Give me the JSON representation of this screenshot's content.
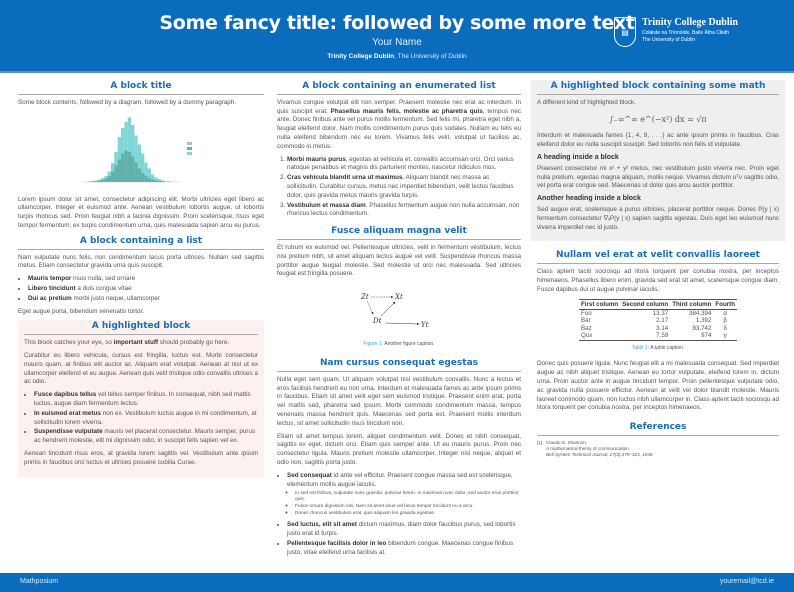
{
  "header": {
    "title": "Some fancy title: followed by some more text",
    "author": "Your Name",
    "institution_bold": "Trinity College Dublin",
    "institution_rest": ", The University of Dublin",
    "logo": {
      "name": "Trinity College Dublin",
      "irish": "Coláiste na Tríonóide, Baile Átha Cliath",
      "sub": "The University of Dublin"
    }
  },
  "col1": {
    "block1": {
      "title": "A block title",
      "intro": "Some block contents, followed by a diagram, followed by a dummy paragraph.",
      "histogram": {
        "series": [
          {
            "color": "#7fd6d6",
            "values": [
              0,
              0,
              1,
              1,
              2,
              3,
              5,
              8,
              14,
              25,
              40,
              60,
              72,
              80,
              86,
              76,
              62,
              50,
              38,
              26,
              18,
              10,
              6,
              4,
              2,
              1,
              1,
              0,
              0,
              0
            ]
          },
          {
            "color": "#63b1ad",
            "values": [
              0,
              0,
              0,
              1,
              1,
              2,
              3,
              5,
              8,
              14,
              22,
              30,
              38,
              42,
              40,
              34,
              26,
              18,
              12,
              8,
              5,
              3,
              2,
              1,
              1,
              0,
              0,
              0,
              0,
              0
            ]
          }
        ]
      },
      "para": "Lorem ipsum dolor sit amet, consectetur adipiscing elit. Morbi ultricies eget libero ac ullamcorper. Integer et euismod ante. Aenean vestibulum lobortis augue, ut lobortis turpis rhoncus sed. Proin feugiat nibh a lacinia dignissim. Proin scelerisque, risus eget tempor fermentum, ex turpis condimentum urna, quis malesuada sapien arcu eu purus."
    },
    "block2": {
      "title": "A block containing a list",
      "intro": "Nam vulputate nunc felis, non condimentum lacus porta ultrices. Nullam sed sagittis metus. Etiam consectetur gravida urna quis suscipit.",
      "items": [
        {
          "b": "Mauris tempor",
          "t": " risus nulla, sed ornare"
        },
        {
          "b": "Libero tincidunt",
          "t": " a duis congue vitae"
        },
        {
          "b": "Dui ac pretium",
          "t": " morbi justo neque, ullamcorper"
        }
      ],
      "outro": "Eget augue porta, bibendum venenatis tortor."
    },
    "block3": {
      "title": "A highlighted block",
      "p1a": "This block catches your eye, so ",
      "p1b": "important stuff",
      "p1c": " should probably go here.",
      "p2": "Curabitur eu libero vehicula, cursus est fringilla, luctus est. Morbi consectetur mauris quam, at finibus elit auctor ac. Aliquam erat volutpat. Aenean at nisl ut ex ullamcorper eleifend et eu augue. Aenean quis velit tristique odio convallis ultrices a ac odio.",
      "items": [
        {
          "b": "Fusce dapibus tellus",
          "t": " vel tellus semper finibus. In consequat, nibh sed mattis luctus, augue diam fermentum lectus."
        },
        {
          "b": "In euismod erat metus",
          "t": " non ex. Vestibulum luctus augue in mi condimentum, at sollicitudin lorem viverra."
        },
        {
          "b": "Suspendisse vulputate",
          "t": " mauris vel placerat consectetur. Mauris semper, purus ac hendrerit molestie, elit mi dignissim odio, in suscipit felis sapien vel ex."
        }
      ],
      "p3": "Aenean tincidunt risus eros, at gravida lorem sagittis vel. Vestibulum ante ipsum primis in faucibus orci luctus et ultrices posuere cubilia Curae."
    }
  },
  "col2": {
    "block1": {
      "title": "A block containing an enumerated list",
      "p1a": "Vivamus congue volutpat elit non semper. Praesent molestie nec erat ac interdum. In quis suscipit erat. ",
      "p1b": "Phasellus mauris felis, molestie ac pharetra quis",
      "p1c": ", tempus nec ante. Donec finibus ante vel purus mollis fermentum. Sed felis mi, pharetra eget nibh a, feugiat eleifend dolor. Nam mollis condimentum purus quis sodales. Nullam eu felis eu nulla eleifend bibendum nec eu lorem. Vivamus felis velit, volutpat ut facilisis ac, commodo in metus.",
      "items": [
        {
          "b": "Morbi mauris purus",
          "t": ", egestas at vehicula et, convallis accumsan orci. Orci varius natoque penatibus et magnis dis parturient montes, nascetur ridiculus mus."
        },
        {
          "b": "Cras vehicula blandit urna ut maximus",
          "t": ". Aliquam blandit nec massa ac sollicitudin. Curabitur cursus, metus nec imperdiet bibendum, velit lectus faucibus dolor, quis gravida metus mauris gravida turpis."
        },
        {
          "b": "Vestibulum et massa diam",
          "t": ". Phasellus fermentum augue non nulla accumsan, non rhoncus lectus condimentum."
        }
      ]
    },
    "block2": {
      "title": "Fusce aliquam magna velit",
      "p": "Et rutrum ex euismod vel. Pellentesque ultricies, velit in fermentum vestibulum, lectus nisi pretium nibh, sit amet aliquam lectus augue vel velit. Suspendisse rhoncus massa porttitor augue feugiat molestie. Sed molestie ut orci nec malesuada. Sed ultricies feugiat est fringilla posuere.",
      "diagram": {
        "z": "Zt",
        "x": "Xt",
        "d": "Dt",
        "y": "Yt"
      },
      "caption_label": "Figure 1:",
      "caption": " Another figure caption."
    },
    "block3": {
      "title": "Nam cursus consequat egestas",
      "p1": "Nulla eget sem quam. Ut aliquam volutpat nisi vestibulum convallis. Nunc a lectus et eros facilisis hendrerit eu non urna. Interdum et malesuada fames ac ante ipsum primis in faucibus. Etiam sit amet velit eget sem euismod tristique. Praesent enim erat, porta vel mattis sed, pharetra sed ipsum. Morbi commodo condimentum massa, tempus venenatis massa hendrerit quis. Maecenas sed porta est. Praesent mollis interdum lectus, sit amet sollicitudin risus tincidunt non.",
      "p2": "Etiam sit amet tempus lorem, aliquet condimentum velit. Donec et nibh consequat, sagittis ex eget, dictum orci. Etiam quis semper ante. Ut eu mauris purus. Proin nec consectetur ligula. Mauris pretium molestie ullamcorper. Integer nisi neque, aliquet et odio non, sagittis porta justo.",
      "items": [
        {
          "b": "Sed consequat",
          "t": " id ante vel efficitur. Praesent congue massa sed est scelerisque, elementum mollis augue iaculis.",
          "sub": [
            "In sed est finibus, vulputate nunc gravida, pulvinar lorem. In maximus nunc dolor, sed auctor eros porttitor quis.",
            "Fusce ornare dignissim nisi. Nam sit amet risus vel lacus tempor tincidunt eu a arcu.",
            "Donec rhoncus vestibulum erat, quis aliquam leo gravida egestas."
          ]
        },
        {
          "b": "Sed luctus, elit sit amet",
          "t": " dictum maximus, diam dolor faucibus purus, sed lobortis justo erat id turpis."
        },
        {
          "b": "Pellentesque facilisis dolor in leo",
          "t": " bibendum congue. Maecenas congue finibus justo, vitae eleifend urna facilisis at."
        }
      ]
    }
  },
  "col3": {
    "block1": {
      "title": "A highlighted block containing some math",
      "intro": "A different kind of highlighted block.",
      "equation": "∫₋∞^∞ e^(−x²) dx = √π",
      "p1": "Interdum et malesuada fames {1, 4, 9, . . .} ac ante ipsum primis in faucibus. Cras eleifend dolor eu nulla suscipit suscipit. Sed lobortis non felis id vulputate.",
      "h1": "A heading inside a block",
      "p2": "Praesent consectetur mi x² + y² metus, nec vestibulum justo viverra nec. Proin eget nulla pretium, egestas magna aliquam, mollis neque. Vivamus dictum uᵀv sagittis odio, vel porta erat congue sed. Maecenas ut dolor quis arcu auctor porttitor.",
      "h2": "Another heading inside a block",
      "p3": "Sed augue erat, scelerisque a purus ultricies, placerat porttitor neque. Donec P(y | x) fermentum consectetur ∇ₓP(y | x) sapien sagittis egestas. Duis eget leo euismod nunc viverra imperdiet nec id justo."
    },
    "block2": {
      "title": "Nullam vel erat at velit convallis laoreet",
      "p1": "Class aptent taciti sociosqu ad litora torquent per conubia nostra, per inceptos himenaeos. Phasellus libero enim, gravida sed erat sit amet, scelerisque congue diam. Fusce dapibus dui ut augue pulvinar iaculis.",
      "table": {
        "headers": [
          "First column",
          "Second column",
          "Third column",
          "Fourth"
        ],
        "rows": [
          [
            "Foo",
            "13.37",
            "384,394",
            "α"
          ],
          [
            "Bar",
            "2.17",
            "1,392",
            "β"
          ],
          [
            "Baz",
            "3.14",
            "83,742",
            "δ"
          ],
          [
            "Qux",
            "7.59",
            "974",
            "γ"
          ]
        ]
      },
      "caption_label": "Table 1:",
      "caption": " A table caption.",
      "p2": "Donec quis posuere ligula. Nunc feugiat elit a mi malesuada consequat. Sed imperdiet augue ac nibh aliquet tristique. Aenean eu tortor vulputate, eleifend lorem in, dictum urna. Proin auctor ante in augue tincidunt tempor. Proin pellentesque vulputate odio, ac gravida nulla posuere efficitur. Aenean at velit vel dolor blandit molestie. Mauris laoreet commodo quam, non luctus nibh ullamcorper in. Class aptent taciti sociosqu ad litora torquent per conubia nostra, per inceptos himenaeos."
    },
    "refs": {
      "title": "References",
      "items": [
        {
          "num": "[1]",
          "author": "Claude E. Shannon.",
          "title": "A mathematical theory of communication.",
          "journal": "Bell System Technical Journal, 27(3):379–423, 1948."
        }
      ]
    }
  },
  "footer": {
    "left": "Mathposium",
    "right": "youremail@tcd.ie"
  }
}
